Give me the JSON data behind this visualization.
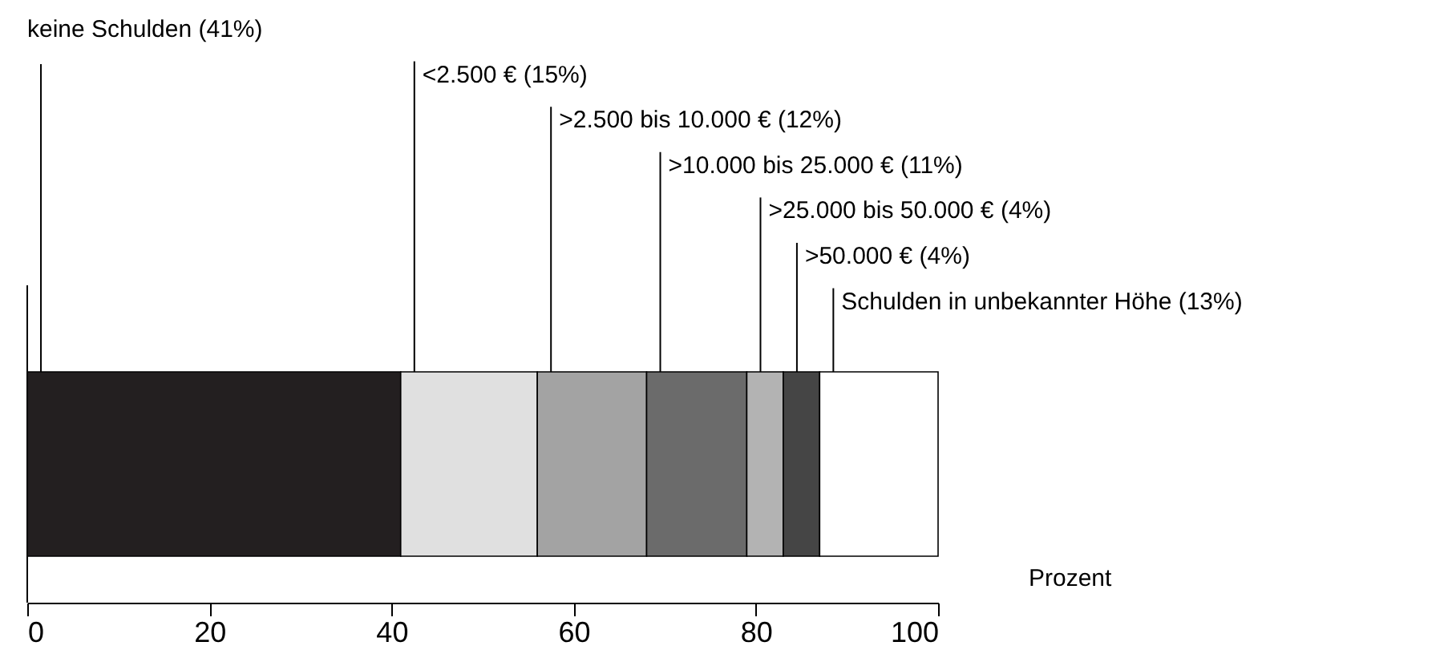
{
  "chart_data": {
    "type": "bar",
    "orientation": "horizontal",
    "stacked": true,
    "categories": [
      null
    ],
    "series": [
      {
        "name": "keine Schulden (41%)",
        "color": "#231f20",
        "values": [
          41
        ]
      },
      {
        "name": "<2.500 € (15%)",
        "color": "#e0e0e0",
        "values": [
          15
        ]
      },
      {
        "name": ">2.500 bis 10.000 € (12%)",
        "color": "#a3a3a3",
        "values": [
          12
        ]
      },
      {
        "name": ">10.000 bis 25.000 € (11%)",
        "color": "#6b6b6b",
        "values": [
          11
        ]
      },
      {
        "name": ">25.000 bis 50.000 € (4%)",
        "color": "#b3b3b3",
        "values": [
          4
        ]
      },
      {
        "name": ">50.000 € (4%)",
        "color": "#454545",
        "values": [
          4
        ]
      },
      {
        "name": "Schulden in unbekannter Höhe (13%)",
        "color": "#ffffff",
        "values": [
          13
        ]
      }
    ],
    "xlim": [
      0,
      100
    ],
    "xticks": [
      0,
      20,
      40,
      60,
      80,
      100
    ],
    "xlabel": "Prozent",
    "grid": false
  }
}
